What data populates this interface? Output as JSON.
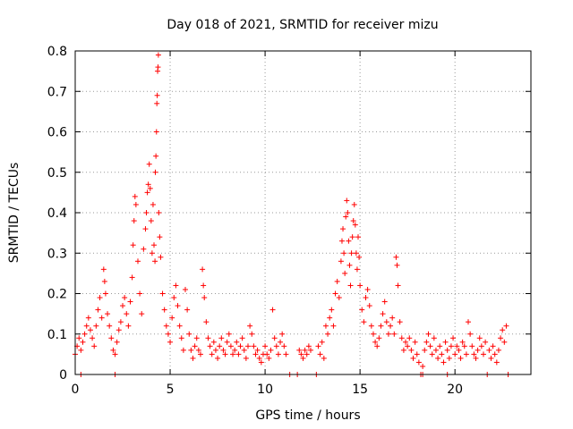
{
  "chart_data": {
    "type": "scatter",
    "title": "Day 018 of 2021, SRMTID for receiver mizu",
    "xlabel": "GPS time / hours",
    "ylabel": "SRMTID / TECUs",
    "xlim": [
      0,
      24
    ],
    "ylim": [
      0,
      0.8
    ],
    "xticks": [
      0,
      5,
      10,
      15,
      20
    ],
    "yticks": [
      0,
      0.1,
      0.2,
      0.3,
      0.4,
      0.5,
      0.6,
      0.7,
      0.8
    ],
    "xtick_labels": [
      "0",
      "5",
      "10",
      "15",
      "20"
    ],
    "ytick_labels": [
      "0",
      "0.1",
      "0.2",
      "0.3",
      "0.4",
      "0.5",
      "0.6",
      "0.7",
      "0.8"
    ],
    "grid": true,
    "marker": "+",
    "color": "#ff0000",
    "series": [
      {
        "name": "SRMTID",
        "points": [
          [
            0.0,
            0.05
          ],
          [
            0.1,
            0.07
          ],
          [
            0.2,
            0.09
          ],
          [
            0.3,
            0.06
          ],
          [
            0.4,
            0.08
          ],
          [
            0.5,
            0.1
          ],
          [
            0.6,
            0.12
          ],
          [
            0.7,
            0.14
          ],
          [
            0.8,
            0.11
          ],
          [
            0.9,
            0.09
          ],
          [
            1.0,
            0.07
          ],
          [
            1.1,
            0.12
          ],
          [
            1.2,
            0.16
          ],
          [
            1.3,
            0.19
          ],
          [
            1.4,
            0.14
          ],
          [
            1.5,
            0.26
          ],
          [
            1.55,
            0.23
          ],
          [
            1.6,
            0.2
          ],
          [
            1.7,
            0.15
          ],
          [
            1.8,
            0.12
          ],
          [
            1.9,
            0.09
          ],
          [
            2.0,
            0.06
          ],
          [
            2.1,
            0.05
          ],
          [
            2.2,
            0.08
          ],
          [
            2.3,
            0.11
          ],
          [
            2.4,
            0.13
          ],
          [
            2.5,
            0.17
          ],
          [
            2.6,
            0.19
          ],
          [
            2.7,
            0.15
          ],
          [
            2.8,
            0.12
          ],
          [
            2.9,
            0.18
          ],
          [
            3.0,
            0.24
          ],
          [
            3.05,
            0.32
          ],
          [
            3.1,
            0.38
          ],
          [
            3.15,
            0.44
          ],
          [
            3.2,
            0.42
          ],
          [
            3.3,
            0.28
          ],
          [
            3.4,
            0.2
          ],
          [
            3.5,
            0.15
          ],
          [
            3.6,
            0.31
          ],
          [
            3.7,
            0.36
          ],
          [
            3.75,
            0.4
          ],
          [
            3.8,
            0.45
          ],
          [
            3.85,
            0.47
          ],
          [
            3.9,
            0.52
          ],
          [
            3.95,
            0.46
          ],
          [
            4.0,
            0.38
          ],
          [
            4.05,
            0.3
          ],
          [
            4.1,
            0.42
          ],
          [
            4.15,
            0.32
          ],
          [
            4.2,
            0.28
          ],
          [
            4.22,
            0.5
          ],
          [
            4.25,
            0.54
          ],
          [
            4.28,
            0.6
          ],
          [
            4.3,
            0.67
          ],
          [
            4.32,
            0.69
          ],
          [
            4.34,
            0.75
          ],
          [
            4.36,
            0.76
          ],
          [
            4.38,
            0.79
          ],
          [
            4.4,
            0.4
          ],
          [
            4.45,
            0.34
          ],
          [
            4.5,
            0.29
          ],
          [
            4.6,
            0.2
          ],
          [
            4.7,
            0.16
          ],
          [
            4.8,
            0.12
          ],
          [
            4.9,
            0.1
          ],
          [
            5.0,
            0.08
          ],
          [
            5.1,
            0.14
          ],
          [
            5.2,
            0.19
          ],
          [
            5.3,
            0.22
          ],
          [
            5.4,
            0.17
          ],
          [
            5.5,
            0.12
          ],
          [
            5.6,
            0.09
          ],
          [
            5.7,
            0.06
          ],
          [
            5.8,
            0.21
          ],
          [
            5.9,
            0.16
          ],
          [
            6.0,
            0.1
          ],
          [
            6.1,
            0.06
          ],
          [
            6.2,
            0.04
          ],
          [
            6.3,
            0.07
          ],
          [
            6.4,
            0.09
          ],
          [
            6.5,
            0.06
          ],
          [
            6.6,
            0.05
          ],
          [
            6.7,
            0.26
          ],
          [
            6.75,
            0.22
          ],
          [
            6.8,
            0.19
          ],
          [
            6.9,
            0.13
          ],
          [
            7.0,
            0.09
          ],
          [
            7.1,
            0.07
          ],
          [
            7.2,
            0.05
          ],
          [
            7.3,
            0.08
          ],
          [
            7.4,
            0.06
          ],
          [
            7.5,
            0.04
          ],
          [
            7.6,
            0.07
          ],
          [
            7.7,
            0.09
          ],
          [
            7.8,
            0.06
          ],
          [
            7.9,
            0.05
          ],
          [
            8.0,
            0.08
          ],
          [
            8.1,
            0.1
          ],
          [
            8.2,
            0.07
          ],
          [
            8.3,
            0.05
          ],
          [
            8.4,
            0.06
          ],
          [
            8.5,
            0.08
          ],
          [
            8.6,
            0.05
          ],
          [
            8.7,
            0.07
          ],
          [
            8.8,
            0.09
          ],
          [
            8.9,
            0.06
          ],
          [
            9.0,
            0.04
          ],
          [
            9.1,
            0.07
          ],
          [
            9.2,
            0.12
          ],
          [
            9.3,
            0.1
          ],
          [
            9.4,
            0.07
          ],
          [
            9.5,
            0.05
          ],
          [
            9.6,
            0.06
          ],
          [
            9.7,
            0.04
          ],
          [
            9.8,
            0.03
          ],
          [
            9.9,
            0.05
          ],
          [
            10.0,
            0.07
          ],
          [
            10.1,
            0.05
          ],
          [
            10.2,
            0.04
          ],
          [
            10.3,
            0.06
          ],
          [
            10.4,
            0.16
          ],
          [
            10.5,
            0.09
          ],
          [
            10.6,
            0.07
          ],
          [
            10.7,
            0.05
          ],
          [
            10.8,
            0.08
          ],
          [
            10.9,
            0.1
          ],
          [
            11.0,
            0.07
          ],
          [
            11.1,
            0.05
          ],
          [
            11.3,
            0.0
          ],
          [
            11.7,
            0.0
          ],
          [
            11.8,
            0.06
          ],
          [
            11.9,
            0.05
          ],
          [
            12.0,
            0.04
          ],
          [
            12.1,
            0.06
          ],
          [
            12.2,
            0.05
          ],
          [
            12.3,
            0.07
          ],
          [
            12.4,
            0.06
          ],
          [
            12.7,
            0.0
          ],
          [
            12.8,
            0.07
          ],
          [
            12.9,
            0.05
          ],
          [
            13.0,
            0.08
          ],
          [
            13.1,
            0.04
          ],
          [
            13.2,
            0.12
          ],
          [
            13.3,
            0.1
          ],
          [
            13.4,
            0.14
          ],
          [
            13.5,
            0.16
          ],
          [
            13.6,
            0.12
          ],
          [
            13.7,
            0.2
          ],
          [
            13.8,
            0.23
          ],
          [
            13.9,
            0.19
          ],
          [
            14.0,
            0.28
          ],
          [
            14.05,
            0.33
          ],
          [
            14.1,
            0.36
          ],
          [
            14.15,
            0.3
          ],
          [
            14.2,
            0.25
          ],
          [
            14.25,
            0.39
          ],
          [
            14.3,
            0.43
          ],
          [
            14.35,
            0.4
          ],
          [
            14.4,
            0.33
          ],
          [
            14.45,
            0.27
          ],
          [
            14.5,
            0.22
          ],
          [
            14.55,
            0.3
          ],
          [
            14.6,
            0.34
          ],
          [
            14.65,
            0.38
          ],
          [
            14.7,
            0.42
          ],
          [
            14.75,
            0.37
          ],
          [
            14.8,
            0.3
          ],
          [
            14.85,
            0.26
          ],
          [
            14.9,
            0.34
          ],
          [
            14.95,
            0.29
          ],
          [
            15.0,
            0.22
          ],
          [
            15.1,
            0.16
          ],
          [
            15.2,
            0.13
          ],
          [
            15.3,
            0.19
          ],
          [
            15.4,
            0.21
          ],
          [
            15.5,
            0.17
          ],
          [
            15.6,
            0.12
          ],
          [
            15.7,
            0.1
          ],
          [
            15.8,
            0.08
          ],
          [
            15.9,
            0.07
          ],
          [
            16.0,
            0.09
          ],
          [
            16.1,
            0.12
          ],
          [
            16.2,
            0.15
          ],
          [
            16.3,
            0.18
          ],
          [
            16.4,
            0.13
          ],
          [
            16.5,
            0.1
          ],
          [
            16.6,
            0.12
          ],
          [
            16.7,
            0.14
          ],
          [
            16.8,
            0.1
          ],
          [
            16.9,
            0.29
          ],
          [
            16.95,
            0.27
          ],
          [
            17.0,
            0.22
          ],
          [
            17.1,
            0.13
          ],
          [
            17.2,
            0.09
          ],
          [
            17.3,
            0.06
          ],
          [
            17.4,
            0.08
          ],
          [
            17.5,
            0.07
          ],
          [
            17.6,
            0.09
          ],
          [
            17.7,
            0.06
          ],
          [
            17.8,
            0.04
          ],
          [
            17.9,
            0.08
          ],
          [
            18.0,
            0.05
          ],
          [
            18.1,
            0.03
          ],
          [
            18.2,
            0.0
          ],
          [
            18.3,
            0.02
          ],
          [
            18.4,
            0.06
          ],
          [
            18.5,
            0.08
          ],
          [
            18.6,
            0.1
          ],
          [
            18.7,
            0.07
          ],
          [
            18.8,
            0.05
          ],
          [
            18.9,
            0.09
          ],
          [
            19.0,
            0.06
          ],
          [
            19.1,
            0.04
          ],
          [
            19.2,
            0.07
          ],
          [
            19.3,
            0.05
          ],
          [
            19.4,
            0.03
          ],
          [
            19.5,
            0.08
          ],
          [
            19.6,
            0.06
          ],
          [
            19.7,
            0.04
          ],
          [
            19.8,
            0.07
          ],
          [
            19.9,
            0.09
          ],
          [
            20.0,
            0.05
          ],
          [
            20.1,
            0.07
          ],
          [
            20.2,
            0.06
          ],
          [
            20.3,
            0.04
          ],
          [
            20.4,
            0.08
          ],
          [
            20.5,
            0.07
          ],
          [
            20.6,
            0.05
          ],
          [
            20.7,
            0.13
          ],
          [
            20.8,
            0.1
          ],
          [
            20.9,
            0.07
          ],
          [
            21.0,
            0.05
          ],
          [
            21.1,
            0.04
          ],
          [
            21.2,
            0.06
          ],
          [
            21.3,
            0.09
          ],
          [
            21.4,
            0.07
          ],
          [
            21.5,
            0.05
          ],
          [
            21.6,
            0.08
          ],
          [
            21.7,
            0.0
          ],
          [
            21.8,
            0.06
          ],
          [
            21.9,
            0.04
          ],
          [
            22.0,
            0.07
          ],
          [
            22.1,
            0.05
          ],
          [
            22.2,
            0.03
          ],
          [
            22.3,
            0.06
          ],
          [
            22.4,
            0.09
          ],
          [
            22.5,
            0.11
          ],
          [
            22.6,
            0.08
          ],
          [
            22.7,
            0.12
          ],
          [
            0.3,
            0.0
          ],
          [
            2.1,
            0.0
          ],
          [
            22.8,
            0.0
          ],
          [
            19.6,
            0.0
          ],
          [
            18.3,
            0.0
          ]
        ]
      }
    ]
  }
}
